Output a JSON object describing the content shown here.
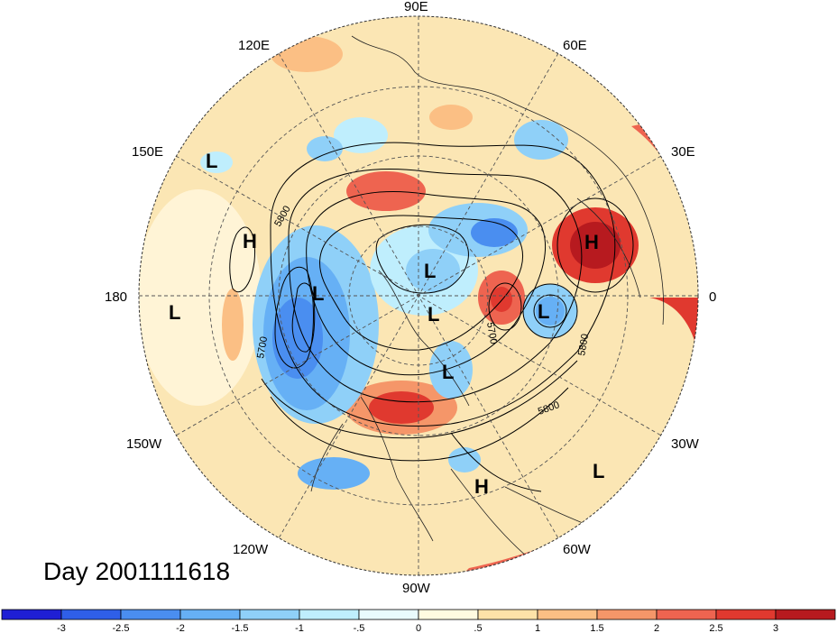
{
  "title": "Day 2001111618",
  "longitude_labels": {
    "e90": "90E",
    "e120": "120E",
    "e60": "60E",
    "e150": "150E",
    "e30": "30E",
    "d180": "180",
    "d0": "0",
    "w150": "150W",
    "w30": "30W",
    "w120": "120W",
    "w60": "60W",
    "w90": "90W"
  },
  "pressure_centers": {
    "L": "L",
    "H": "H"
  },
  "contour_labels": {
    "c5800a": "5800",
    "c5700a": "5700",
    "c5700b": "5700",
    "c5800b": "5800",
    "c5800c": "5800"
  },
  "colorbar": {
    "colors": [
      "#1f1fd4",
      "#2f5fe8",
      "#4a8ef0",
      "#66b0f5",
      "#8fd0f8",
      "#bfeefd",
      "#e9fbfd",
      "#fffbe0",
      "#fde2a8",
      "#fbbf84",
      "#f59669",
      "#ee6450",
      "#e0392f",
      "#b71a1f"
    ],
    "tick_labels": [
      "-3",
      "-2.5",
      "-2",
      "-1.5",
      "-1",
      "-.5",
      "0",
      ".5",
      "1",
      "1.5",
      "2",
      "2.5",
      "3"
    ]
  }
}
